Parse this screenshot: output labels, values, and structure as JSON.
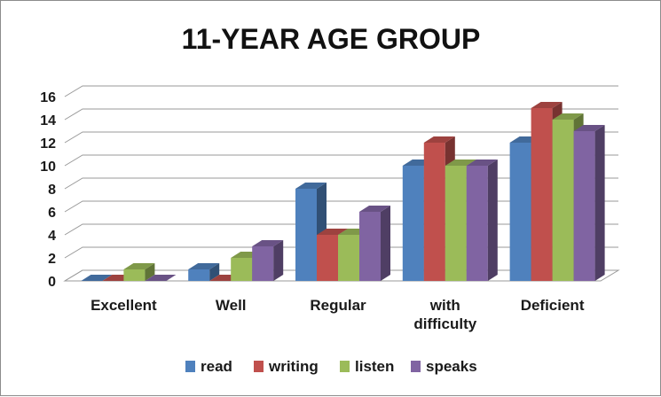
{
  "chart_data": {
    "type": "bar",
    "title": "11-YEAR AGE GROUP",
    "categories": [
      [
        "Excellent"
      ],
      [
        "Well"
      ],
      [
        "Regular"
      ],
      [
        "with",
        "difficulty"
      ],
      [
        "Deficient"
      ]
    ],
    "series": [
      {
        "name": "read",
        "color": "#4f81bd",
        "values": [
          0,
          1,
          8,
          10,
          12
        ]
      },
      {
        "name": "writing",
        "color": "#c0504d",
        "values": [
          0,
          0,
          4,
          12,
          15
        ]
      },
      {
        "name": "listen",
        "color": "#9bbb59",
        "values": [
          1,
          2,
          4,
          10,
          14
        ]
      },
      {
        "name": "speaks",
        "color": "#8064a2",
        "values": [
          0,
          3,
          6,
          10,
          13
        ]
      }
    ],
    "ylim": [
      0,
      16
    ],
    "yticks": [
      0,
      2,
      4,
      6,
      8,
      10,
      12,
      14,
      16
    ],
    "grid": true,
    "legend": "bottom",
    "style": "3d-clustered-column"
  }
}
